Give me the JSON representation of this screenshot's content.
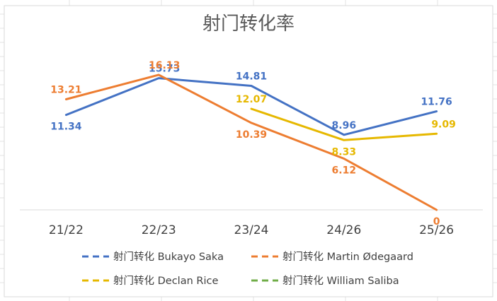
{
  "chart_data": {
    "type": "line",
    "title": "射门转化率",
    "xlabel": "",
    "ylabel": "",
    "categories": [
      "21/22",
      "22/23",
      "23/24",
      "24/26",
      "25/26"
    ],
    "ylim": [
      0,
      20
    ],
    "grid": false,
    "legend_position": "bottom",
    "series": [
      {
        "name": "射门转化 Bukayo Saka",
        "color": "#4472C4",
        "values": [
          11.34,
          15.73,
          14.81,
          8.96,
          11.76
        ],
        "labels": [
          "11.34",
          "15.73",
          "14.81",
          "8.96",
          "11.76"
        ]
      },
      {
        "name": "射门转化 Martin Ødegaard",
        "color": "#ED7D31",
        "values": [
          13.21,
          16.13,
          10.39,
          6.12,
          0
        ],
        "labels": [
          "13.21",
          "16.13",
          "10.39",
          "6.12",
          "0"
        ]
      },
      {
        "name": "射门转化 Declan Rice",
        "color": "#E6B800",
        "values": [
          null,
          null,
          12.07,
          8.33,
          9.09
        ],
        "labels": [
          null,
          null,
          "12.07",
          "8.33",
          "9.09"
        ]
      },
      {
        "name": "射门转化 William Saliba",
        "color": "#70AD47",
        "values": [
          null,
          null,
          null,
          null,
          null
        ],
        "labels": [
          null,
          null,
          null,
          null,
          null
        ]
      }
    ]
  }
}
